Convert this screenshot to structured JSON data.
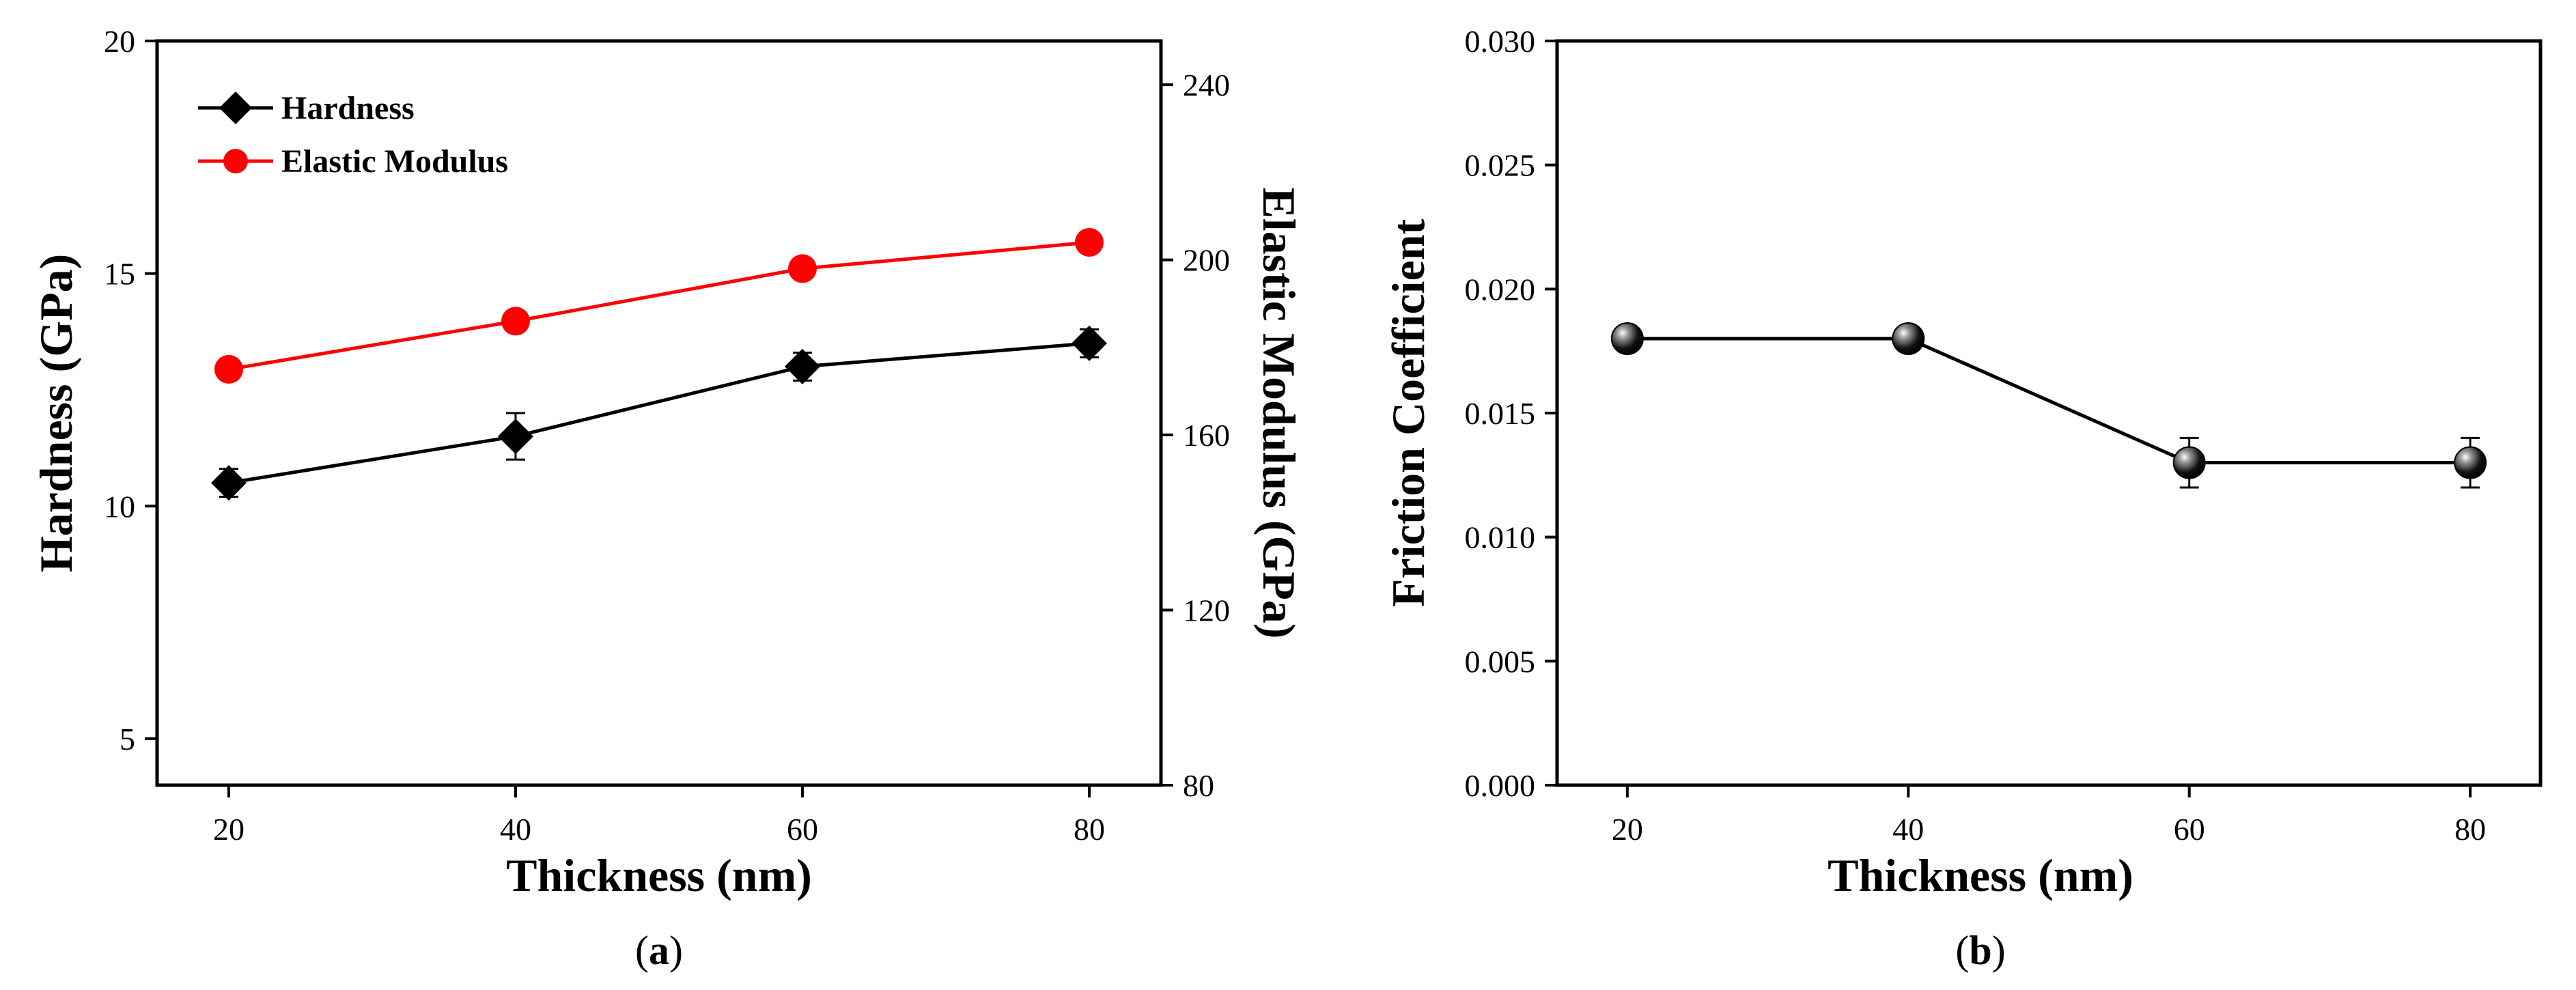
{
  "chart_data": [
    {
      "panel": "a",
      "panel_label": "a",
      "type": "line",
      "xlabel": "Thickness (nm)",
      "ylabel": "Hardness (GPa)",
      "y2label": "Elastic Modulus (GPa)",
      "x": [
        20,
        40,
        60,
        80
      ],
      "xlim": [
        15,
        85
      ],
      "ylim": [
        4,
        20
      ],
      "y2lim": [
        80,
        250
      ],
      "xticks": [
        20,
        40,
        60,
        80
      ],
      "yticks": [
        5,
        10,
        15,
        20
      ],
      "y2ticks": [
        80,
        120,
        160,
        200,
        240
      ],
      "series": [
        {
          "name": "Hardness",
          "axis": "left",
          "color": "#000000",
          "marker": "diamond",
          "values": [
            10.5,
            11.5,
            13.0,
            13.5
          ],
          "errors": [
            0.3,
            0.5,
            0.3,
            0.3
          ]
        },
        {
          "name": "Elastic Modulus",
          "axis": "right",
          "color": "#ff0000",
          "marker": "circle",
          "values": [
            175,
            186,
            198,
            204
          ],
          "errors": [
            0,
            0,
            0,
            0
          ]
        }
      ],
      "legend_position": "top-left"
    },
    {
      "panel": "b",
      "panel_label": "b",
      "type": "line",
      "xlabel": "Thickness (nm)",
      "ylabel": "Friction Coefficient",
      "x": [
        20,
        40,
        60,
        80
      ],
      "xlim": [
        15,
        85
      ],
      "ylim": [
        0,
        0.03
      ],
      "xticks": [
        20,
        40,
        60,
        80
      ],
      "yticks": [
        0.0,
        0.005,
        0.01,
        0.015,
        0.02,
        0.025,
        0.03
      ],
      "ytick_labels": [
        "0.000",
        "0.005",
        "0.010",
        "0.015",
        "0.020",
        "0.025",
        "0.030"
      ],
      "series": [
        {
          "name": "Friction Coefficient",
          "axis": "left",
          "color": "#000000",
          "marker": "sphere",
          "values": [
            0.018,
            0.018,
            0.013,
            0.013
          ],
          "errors": [
            0.0004,
            0.0004,
            0.001,
            0.001
          ]
        }
      ]
    }
  ]
}
